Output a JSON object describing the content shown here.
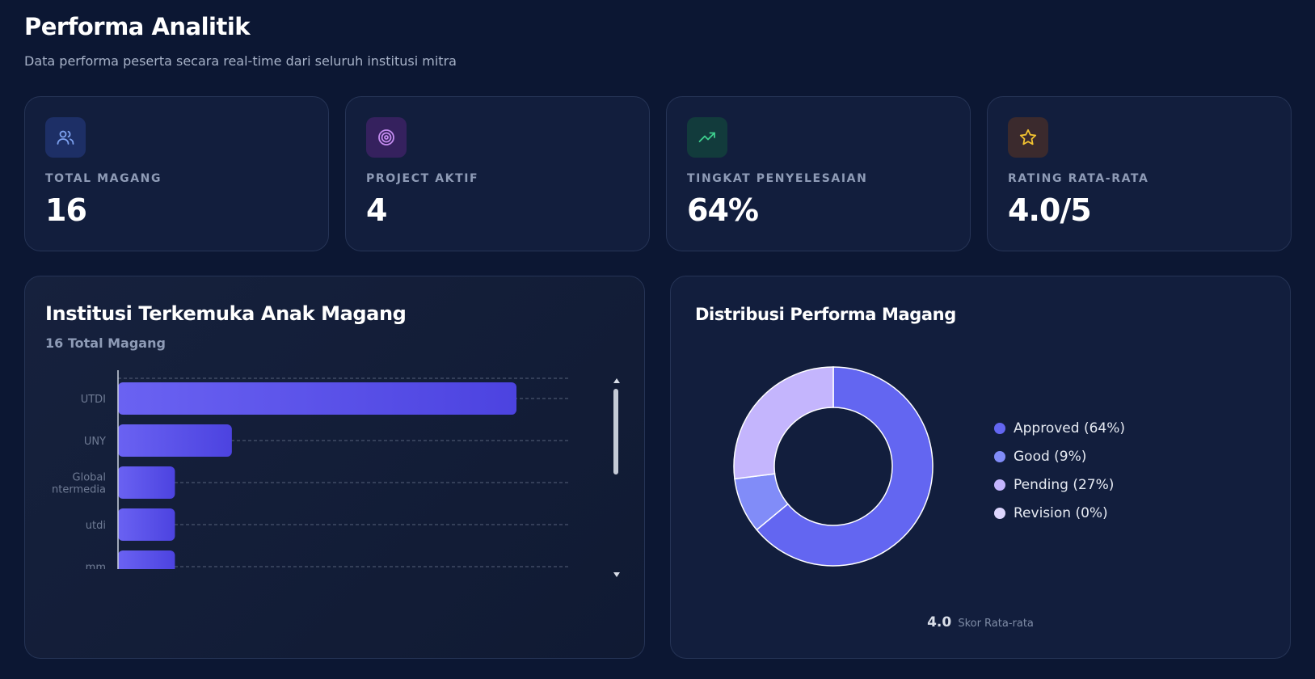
{
  "header": {
    "title": "Performa Analitik",
    "subtitle": "Data performa peserta secara real-time dari seluruh institusi mitra"
  },
  "stats": [
    {
      "label": "TOTAL MAGANG",
      "value": "16",
      "icon": "users-icon",
      "icon_color": "#7ea2f0",
      "icon_bg": "#1d2f66"
    },
    {
      "label": "PROJECT AKTIF",
      "value": "4",
      "icon": "target-icon",
      "icon_color": "#c48cf0",
      "icon_bg": "#35215e"
    },
    {
      "label": "TINGKAT PENYELESAIAN",
      "value": "64%",
      "icon": "trending-up-icon",
      "icon_color": "#3ed08e",
      "icon_bg": "#123b3c"
    },
    {
      "label": "RATING RATA-RATA",
      "value": "4.0/5",
      "icon": "star-icon",
      "icon_color": "#f2c230",
      "icon_bg": "#3b2a2d"
    }
  ],
  "institutions_panel": {
    "title": "Institusi Terkemuka Anak Magang",
    "subtitle": "16 Total Magang"
  },
  "distribution_panel": {
    "title": "Distribusi Performa Magang",
    "avg_value": "4.0",
    "avg_label": "Skor Rata-rata"
  },
  "chart_data": [
    {
      "type": "bar",
      "orientation": "horizontal",
      "categories": [
        "UTDI",
        "UNY",
        "Global Intermedia",
        "utdi",
        "mm"
      ],
      "category_label_lines": [
        [
          "UTDI"
        ],
        [
          "UNY"
        ],
        [
          "Global",
          "ntermedia"
        ],
        [
          "utdi"
        ],
        [
          "mm"
        ]
      ],
      "values": [
        7,
        2,
        1,
        1,
        1
      ],
      "xlim": [
        0,
        8
      ],
      "grid": true,
      "colors": [
        "#6a62f2",
        "#4c43e0"
      ]
    },
    {
      "type": "pie",
      "donut": true,
      "categories": [
        "Approved (64%)",
        "Good (9%)",
        "Pending (27%)",
        "Revision (0%)"
      ],
      "values": [
        64,
        9,
        27,
        0
      ],
      "colors": [
        "#6366f1",
        "#818cf8",
        "#c4b5fd",
        "#ddd6fe"
      ],
      "legend": "right"
    }
  ]
}
